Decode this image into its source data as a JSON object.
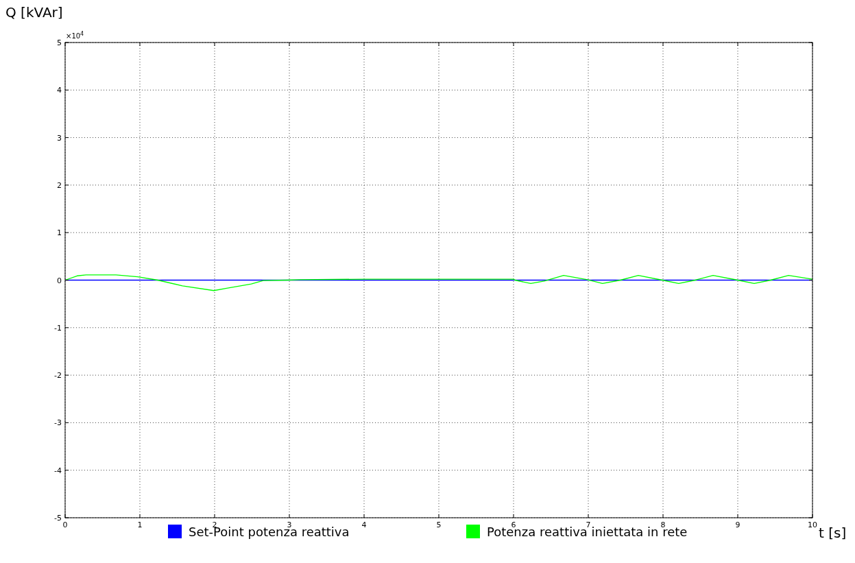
{
  "chart_data": {
    "type": "line",
    "xlabel": "t [s]",
    "ylabel": "Q [kVAr]",
    "annotations": [
      "×10$^{4}$"
    ],
    "xlim": [
      0,
      10
    ],
    "xticks": [
      0,
      1,
      2,
      3,
      4,
      5,
      6,
      7,
      8,
      9,
      10
    ],
    "ylim": [
      -5,
      5
    ],
    "yticks": [
      -5,
      -4,
      -3,
      -2,
      -1,
      0,
      1,
      2,
      3,
      4,
      5
    ],
    "grid": true,
    "legend": "bottom",
    "marker": "none",
    "line_style": "solid",
    "series": [
      {
        "name": "Set-Point potenza reattiva",
        "color": "#0000ff",
        "x": [
          0,
          10
        ],
        "values": [
          0,
          0
        ]
      },
      {
        "name": "Potenza reattiva iniettata in rete",
        "color": "#00ff00",
        "x": [
          0,
          0.16,
          0.28,
          0.68,
          0.97,
          1.24,
          1.57,
          1.99,
          2.16,
          2.49,
          2.65,
          2.97,
          3.14,
          4,
          5,
          6,
          6.02,
          6.23,
          6.41,
          6.67,
          6.99,
          7.19,
          7.43,
          7.67,
          7.99,
          8.21,
          8.43,
          8.67,
          9,
          9.22,
          9.44,
          9.68,
          10
        ],
        "values": [
          0,
          0.09,
          0.11,
          0.11,
          0.07,
          0,
          -0.12,
          -0.22,
          -0.17,
          -0.08,
          -0.01,
          0,
          0.01,
          0.02,
          0.02,
          0.02,
          0,
          -0.07,
          -0.02,
          0.1,
          0.01,
          -0.07,
          0,
          0.1,
          0,
          -0.07,
          0,
          0.1,
          0,
          -0.07,
          0,
          0.1,
          0.02
        ]
      }
    ]
  }
}
